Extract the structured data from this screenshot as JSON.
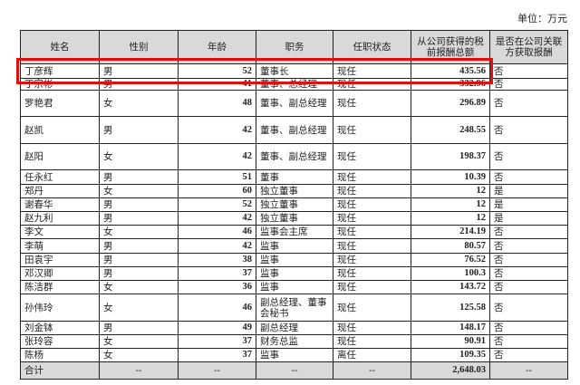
{
  "unit_label": "单位：万元",
  "headers": [
    "姓名",
    "性别",
    "年龄",
    "职务",
    "任职状态",
    "从公司获得的税前报酬总额",
    "是否在公司关联方获取报酬"
  ],
  "rows": [
    [
      "丁彦辉",
      "男",
      "52",
      "董事长",
      "现任",
      "435.56",
      "否"
    ],
    [
      "丁宗彬",
      "男",
      "41",
      "董事、总经理",
      "现任",
      "332.96",
      "否"
    ],
    [
      "罗艳君",
      "女",
      "48",
      "董事、副总经理",
      "现任",
      "296.89",
      "否"
    ],
    [
      "赵凯",
      "男",
      "42",
      "董事、副总经理",
      "现任",
      "248.55",
      "否"
    ],
    [
      "赵阳",
      "女",
      "42",
      "董事、副总经理",
      "现任",
      "198.37",
      "否"
    ],
    [
      "任永红",
      "男",
      "51",
      "董事",
      "现任",
      "10.39",
      "否"
    ],
    [
      "郑丹",
      "女",
      "60",
      "独立董事",
      "现任",
      "12",
      "是"
    ],
    [
      "谢春华",
      "男",
      "52",
      "独立董事",
      "现任",
      "12",
      "是"
    ],
    [
      "赵九利",
      "男",
      "42",
      "独立董事",
      "现任",
      "12",
      "是"
    ],
    [
      "李文",
      "女",
      "46",
      "监事会主席",
      "现任",
      "214.19",
      "否"
    ],
    [
      "李萌",
      "男",
      "42",
      "监事",
      "现任",
      "80.57",
      "否"
    ],
    [
      "田袁宇",
      "男",
      "38",
      "监事",
      "现任",
      "76.52",
      "否"
    ],
    [
      "邓汉卿",
      "男",
      "37",
      "监事",
      "现任",
      "100.3",
      "否"
    ],
    [
      "陈洁群",
      "女",
      "36",
      "监事",
      "现任",
      "143.72",
      "否"
    ],
    [
      "孙伟玲",
      "女",
      "46",
      "副总经理、董事会秘书",
      "现任",
      "125.58",
      "否"
    ],
    [
      "刘金钵",
      "男",
      "49",
      "副总经理",
      "现任",
      "148.17",
      "否"
    ],
    [
      "张玲容",
      "女",
      "37",
      "财务总监",
      "现任",
      "90.91",
      "否"
    ],
    [
      "陈杨",
      "女",
      "37",
      "监事",
      "离任",
      "109.35",
      "否"
    ]
  ],
  "total": [
    "合计",
    "--",
    "--",
    "--",
    "--",
    "2,648.03",
    "--"
  ],
  "highlight_color": "#e01010"
}
